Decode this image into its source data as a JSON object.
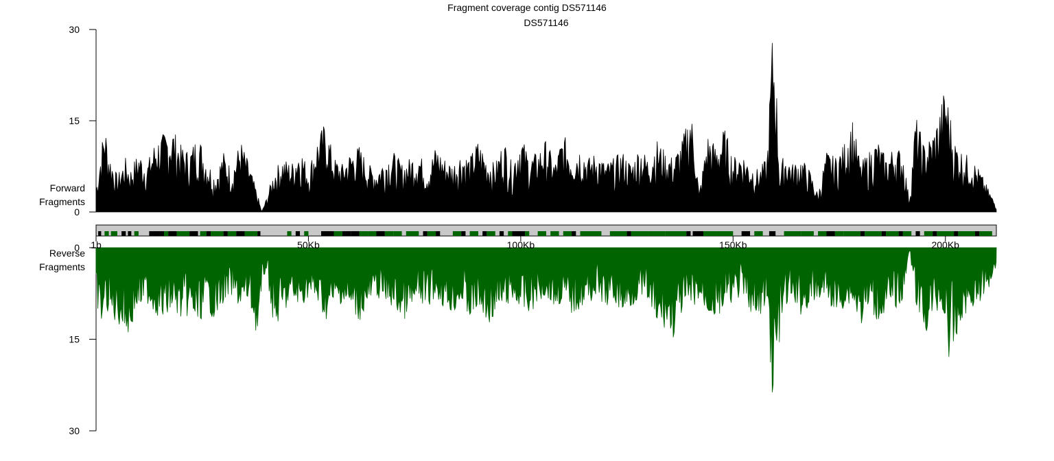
{
  "chart_data": {
    "type": "area",
    "title": "Fragment coverage contig DS571146",
    "subtitle": "DS571146",
    "contig_length_bp": 212000,
    "colors": {
      "forward": "#000000",
      "reverse": "#006400",
      "track_bg": "#c8c8c8",
      "feature_forward": "#000000",
      "feature_reverse": "#006400"
    },
    "forward_panel": {
      "ylabel_line1": "Forward",
      "ylabel_line2": "Fragments",
      "ylim": [
        0,
        30
      ],
      "yticks": [
        0,
        15,
        30
      ],
      "series_name": "Forward Fragments",
      "x_kb": [
        0,
        2,
        3,
        5,
        7,
        8,
        10,
        12,
        14,
        16,
        18,
        20,
        22,
        24,
        26,
        28,
        30,
        32,
        34,
        36,
        38,
        39,
        40,
        42,
        44,
        46,
        48,
        50,
        52,
        54,
        56,
        58,
        60,
        62,
        64,
        66,
        68,
        70,
        72,
        74,
        76,
        78,
        80,
        82,
        84,
        86,
        88,
        90,
        92,
        94,
        96,
        98,
        100,
        102,
        104,
        106,
        108,
        110,
        112,
        114,
        116,
        118,
        120,
        122,
        124,
        126,
        128,
        130,
        132,
        134,
        136,
        138,
        140,
        141,
        142,
        144,
        146,
        148,
        150,
        152,
        154,
        156,
        158,
        159.3,
        160,
        161,
        162,
        164,
        166,
        168,
        170,
        172,
        174,
        176,
        178,
        180,
        182,
        184,
        186,
        188,
        190,
        191.5,
        193,
        195,
        197,
        198,
        200,
        201,
        202,
        204,
        206,
        208,
        210,
        212
      ],
      "values": [
        4,
        15,
        10,
        6,
        9,
        7,
        10,
        8,
        12,
        13,
        14,
        11,
        10,
        13,
        9,
        6,
        10,
        7,
        12,
        8,
        3,
        0,
        2,
        7,
        9,
        8,
        11,
        7,
        12,
        15,
        9,
        8,
        10,
        11,
        8,
        7,
        9,
        10,
        8,
        9,
        10,
        7,
        11,
        9,
        8,
        10,
        9,
        12,
        9,
        8,
        12,
        8,
        13,
        9,
        10,
        12,
        8,
        13,
        10,
        11,
        9,
        10,
        8,
        9,
        10,
        8,
        11,
        9,
        12,
        10,
        9,
        12,
        17,
        12,
        3,
        13,
        11,
        14,
        9,
        10,
        8,
        7,
        9,
        30,
        25,
        6,
        10,
        8,
        9,
        7,
        3,
        10,
        9,
        11,
        16,
        8,
        10,
        12,
        9,
        11,
        10,
        2,
        16,
        11,
        13,
        15,
        21,
        17,
        12,
        10,
        9,
        7,
        4,
        1
      ]
    },
    "reverse_panel": {
      "ylabel_line1": "Reverse",
      "ylabel_line2": "Fragments",
      "ylim": [
        0,
        30
      ],
      "yticks": [
        0,
        15,
        30
      ],
      "series_name": "Reverse Fragments",
      "x_kb": [
        0,
        1,
        2,
        4,
        6,
        8,
        9,
        10,
        12,
        14,
        16,
        18,
        20,
        22,
        24,
        26,
        28,
        30,
        32,
        34,
        36,
        38,
        40,
        42,
        44,
        46,
        48,
        50,
        52,
        54,
        56,
        58,
        60,
        62,
        64,
        66,
        68,
        70,
        72,
        74,
        76,
        78,
        80,
        82,
        84,
        86,
        88,
        90,
        92,
        94,
        96,
        98,
        100,
        102,
        104,
        106,
        108,
        110,
        112,
        114,
        116,
        118,
        120,
        122,
        124,
        126,
        128,
        130,
        132,
        134,
        136,
        138,
        140,
        142,
        144,
        146,
        148,
        150,
        152,
        154,
        155,
        156,
        158,
        159.3,
        160,
        162,
        164,
        166,
        168,
        170,
        172,
        174,
        176,
        178,
        180,
        182,
        184,
        186,
        188,
        190,
        191.5,
        193,
        195,
        197,
        199,
        200,
        201,
        202,
        204,
        206,
        208,
        210,
        212
      ],
      "values": [
        8,
        14,
        10,
        12,
        13,
        15,
        11,
        10,
        9,
        11,
        12,
        10,
        12,
        11,
        13,
        10,
        12,
        9,
        8,
        10,
        9,
        15,
        3,
        14,
        11,
        9,
        10,
        8,
        9,
        12,
        10,
        9,
        11,
        12,
        10,
        8,
        9,
        10,
        12,
        11,
        9,
        10,
        8,
        10,
        11,
        9,
        12,
        10,
        13,
        11,
        10,
        9,
        10,
        11,
        9,
        8,
        10,
        9,
        11,
        10,
        9,
        8,
        10,
        9,
        11,
        10,
        8,
        9,
        14,
        13,
        15,
        11,
        10,
        9,
        11,
        12,
        10,
        9,
        8,
        10,
        14,
        12,
        9,
        25,
        20,
        10,
        9,
        11,
        10,
        9,
        8,
        11,
        10,
        9,
        13,
        10,
        12,
        11,
        10,
        9,
        0,
        9,
        15,
        11,
        10,
        13,
        19,
        17,
        12,
        10,
        9,
        7,
        3
      ]
    },
    "x_axis": {
      "tick_values_kb": [
        0,
        50,
        100,
        150,
        200
      ],
      "tick_labels": [
        "1b",
        "50Kb",
        "100Kb",
        "150Kb",
        "200Kb"
      ]
    },
    "feature_track": {
      "features_kb": [
        [
          0.5,
          1.2,
          "f"
        ],
        [
          2,
          3,
          "r"
        ],
        [
          3.5,
          5,
          "r"
        ],
        [
          6,
          7,
          "f"
        ],
        [
          7.5,
          8.3,
          "f"
        ],
        [
          9,
          10,
          "r"
        ],
        [
          12.5,
          16,
          "f"
        ],
        [
          16,
          17,
          "r"
        ],
        [
          17,
          19,
          "f"
        ],
        [
          19,
          22,
          "r"
        ],
        [
          22,
          24,
          "f"
        ],
        [
          24.5,
          26,
          "r"
        ],
        [
          26,
          27,
          "f"
        ],
        [
          27,
          30,
          "r"
        ],
        [
          30,
          31,
          "f"
        ],
        [
          31,
          33,
          "r"
        ],
        [
          33,
          35,
          "f"
        ],
        [
          35,
          38,
          "r"
        ],
        [
          38,
          38.7,
          "f"
        ],
        [
          45,
          46,
          "r"
        ],
        [
          47,
          48,
          "f"
        ],
        [
          49,
          50,
          "r"
        ],
        [
          53,
          56,
          "f"
        ],
        [
          56,
          58,
          "r"
        ],
        [
          58,
          60,
          "f"
        ],
        [
          60,
          62,
          "f"
        ],
        [
          62,
          64,
          "r"
        ],
        [
          64,
          66,
          "r"
        ],
        [
          66,
          68,
          "f"
        ],
        [
          68,
          70,
          "r"
        ],
        [
          70,
          72,
          "r"
        ],
        [
          73,
          76,
          "r"
        ],
        [
          77,
          78,
          "f"
        ],
        [
          78,
          80,
          "r"
        ],
        [
          80,
          81,
          "f"
        ],
        [
          84,
          86,
          "r"
        ],
        [
          86,
          87,
          "f"
        ],
        [
          88,
          90,
          "r"
        ],
        [
          91,
          92,
          "f"
        ],
        [
          92,
          94,
          "r"
        ],
        [
          95,
          96,
          "f"
        ],
        [
          97,
          98,
          "r"
        ],
        [
          98,
          101,
          "f"
        ],
        [
          101,
          102,
          "r"
        ],
        [
          104,
          106,
          "r"
        ],
        [
          107,
          109,
          "r"
        ],
        [
          110,
          112,
          "r"
        ],
        [
          112,
          113,
          "f"
        ],
        [
          114,
          119,
          "r"
        ],
        [
          121,
          125,
          "r"
        ],
        [
          125,
          126,
          "f"
        ],
        [
          126,
          130,
          "r"
        ],
        [
          130,
          134,
          "r"
        ],
        [
          134,
          139,
          "r"
        ],
        [
          139,
          140,
          "f"
        ],
        [
          140.5,
          143,
          "f"
        ],
        [
          143,
          146,
          "r"
        ],
        [
          146,
          150,
          "r"
        ],
        [
          152,
          154,
          "f"
        ],
        [
          155,
          157,
          "r"
        ],
        [
          158.5,
          160,
          "f"
        ],
        [
          162,
          166,
          "r"
        ],
        [
          166,
          169,
          "r"
        ],
        [
          170,
          172,
          "r"
        ],
        [
          172,
          174,
          "f"
        ],
        [
          174,
          176,
          "r"
        ],
        [
          176,
          180,
          "r"
        ],
        [
          180,
          181,
          "f"
        ],
        [
          181,
          185,
          "r"
        ],
        [
          185,
          186,
          "f"
        ],
        [
          186,
          189,
          "r"
        ],
        [
          189,
          190,
          "f"
        ],
        [
          190,
          192,
          "r"
        ],
        [
          193,
          194,
          "f"
        ],
        [
          195,
          197,
          "r"
        ],
        [
          197,
          198,
          "f"
        ],
        [
          198,
          202,
          "r"
        ],
        [
          202,
          203,
          "f"
        ],
        [
          203,
          207,
          "r"
        ],
        [
          207,
          208,
          "f"
        ],
        [
          208,
          211,
          "r"
        ]
      ]
    }
  }
}
